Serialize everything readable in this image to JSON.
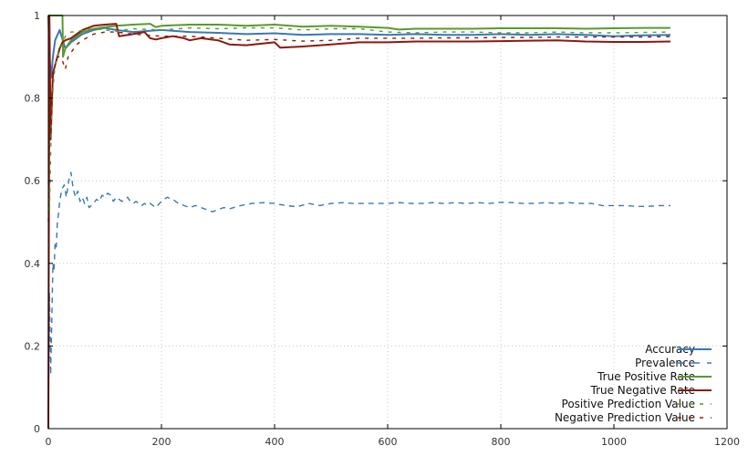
{
  "chart_data": {
    "type": "line",
    "title": "",
    "xlabel": "",
    "ylabel": "",
    "xlim": [
      0,
      1200
    ],
    "ylim": [
      0,
      1
    ],
    "grid": true,
    "legend_position": "bottom-right",
    "x_ticks": [
      0,
      200,
      400,
      600,
      800,
      1000,
      1200
    ],
    "y_ticks": [
      0,
      0.2,
      0.4,
      0.6,
      0.8,
      1
    ],
    "series": [
      {
        "name": "Accuracy",
        "color": "#3a78b5",
        "dash": "solid",
        "x": [
          0,
          2,
          5,
          8,
          12,
          20,
          30,
          40,
          50,
          60,
          80,
          100,
          120,
          150,
          200,
          250,
          300,
          350,
          400,
          450,
          500,
          550,
          600,
          650,
          700,
          750,
          800,
          850,
          900,
          950,
          1000,
          1050,
          1100
        ],
        "y": [
          1.0,
          0.9,
          0.85,
          0.9,
          0.94,
          0.965,
          0.92,
          0.935,
          0.945,
          0.955,
          0.965,
          0.97,
          0.965,
          0.96,
          0.965,
          0.96,
          0.958,
          0.955,
          0.957,
          0.953,
          0.955,
          0.955,
          0.953,
          0.955,
          0.953,
          0.953,
          0.955,
          0.953,
          0.955,
          0.953,
          0.95,
          0.952,
          0.953
        ]
      },
      {
        "name": "Prevalence",
        "color": "#3a78b5",
        "dash": "dashed",
        "x": [
          0,
          2,
          4,
          6,
          8,
          10,
          12,
          14,
          16,
          18,
          20,
          24,
          28,
          32,
          36,
          40,
          44,
          48,
          52,
          56,
          60,
          64,
          68,
          72,
          76,
          80,
          85,
          90,
          95,
          100,
          105,
          110,
          115,
          120,
          125,
          130,
          135,
          140,
          145,
          150,
          155,
          160,
          165,
          170,
          175,
          180,
          190,
          200,
          210,
          220,
          230,
          240,
          250,
          260,
          270,
          280,
          290,
          300,
          310,
          320,
          340,
          360,
          380,
          400,
          420,
          440,
          460,
          480,
          500,
          520,
          540,
          560,
          580,
          600,
          620,
          640,
          660,
          680,
          700,
          720,
          740,
          760,
          780,
          800,
          820,
          840,
          860,
          880,
          900,
          920,
          940,
          960,
          980,
          1000,
          1020,
          1040,
          1060,
          1080,
          1100
        ],
        "y": [
          0.0,
          0.33,
          0.13,
          0.25,
          0.4,
          0.38,
          0.45,
          0.44,
          0.5,
          0.52,
          0.55,
          0.58,
          0.59,
          0.56,
          0.6,
          0.62,
          0.58,
          0.56,
          0.575,
          0.55,
          0.56,
          0.545,
          0.56,
          0.535,
          0.54,
          0.545,
          0.555,
          0.55,
          0.565,
          0.56,
          0.57,
          0.565,
          0.55,
          0.56,
          0.555,
          0.55,
          0.555,
          0.56,
          0.55,
          0.545,
          0.55,
          0.545,
          0.54,
          0.545,
          0.54,
          0.545,
          0.535,
          0.55,
          0.56,
          0.555,
          0.545,
          0.54,
          0.535,
          0.54,
          0.535,
          0.53,
          0.525,
          0.53,
          0.535,
          0.532,
          0.54,
          0.545,
          0.547,
          0.545,
          0.54,
          0.537,
          0.545,
          0.54,
          0.545,
          0.547,
          0.545,
          0.545,
          0.545,
          0.545,
          0.547,
          0.545,
          0.545,
          0.547,
          0.545,
          0.547,
          0.545,
          0.547,
          0.545,
          0.548,
          0.547,
          0.545,
          0.545,
          0.547,
          0.545,
          0.547,
          0.545,
          0.545,
          0.54,
          0.54,
          0.54,
          0.538,
          0.538,
          0.54,
          0.54
        ]
      },
      {
        "name": "True Positive Rate",
        "color": "#5a9a2f",
        "dash": "solid",
        "x": [
          0,
          1,
          2,
          25,
          26,
          30,
          40,
          50,
          60,
          80,
          100,
          120,
          150,
          180,
          190,
          200,
          250,
          300,
          350,
          400,
          450,
          500,
          550,
          600,
          620,
          650,
          700,
          750,
          800,
          850,
          900,
          950,
          1000,
          1050,
          1100
        ],
        "y": [
          1.0,
          1.0,
          1.0,
          1.0,
          0.9,
          0.92,
          0.94,
          0.95,
          0.96,
          0.968,
          0.972,
          0.975,
          0.978,
          0.98,
          0.972,
          0.975,
          0.978,
          0.978,
          0.975,
          0.978,
          0.973,
          0.975,
          0.973,
          0.97,
          0.966,
          0.968,
          0.968,
          0.968,
          0.969,
          0.969,
          0.969,
          0.968,
          0.969,
          0.97,
          0.97
        ]
      },
      {
        "name": "True Negative Rate",
        "color": "#8b1a0e",
        "dash": "solid",
        "x": [
          0,
          2,
          4,
          8,
          12,
          16,
          20,
          25,
          30,
          40,
          50,
          60,
          80,
          100,
          120,
          125,
          150,
          170,
          180,
          190,
          200,
          220,
          240,
          250,
          270,
          300,
          320,
          350,
          400,
          410,
          450,
          500,
          550,
          600,
          650,
          700,
          750,
          800,
          850,
          900,
          950,
          1000,
          1050,
          1100
        ],
        "y": [
          0.0,
          1.0,
          0.7,
          0.86,
          0.88,
          0.9,
          0.92,
          0.935,
          0.94,
          0.945,
          0.955,
          0.965,
          0.975,
          0.978,
          0.98,
          0.95,
          0.955,
          0.96,
          0.945,
          0.942,
          0.945,
          0.95,
          0.945,
          0.94,
          0.945,
          0.94,
          0.93,
          0.928,
          0.935,
          0.922,
          0.925,
          0.93,
          0.935,
          0.935,
          0.937,
          0.937,
          0.937,
          0.938,
          0.939,
          0.94,
          0.937,
          0.936,
          0.936,
          0.937
        ]
      },
      {
        "name": "Positive Prediction Value",
        "color": "#5a9a2f",
        "dash": "dashed",
        "x": [
          0,
          2,
          5,
          8,
          12,
          16,
          20,
          25,
          30,
          35,
          40,
          50,
          60,
          80,
          100,
          120,
          150,
          200,
          250,
          300,
          350,
          400,
          450,
          500,
          550,
          600,
          650,
          700,
          750,
          800,
          850,
          900,
          950,
          1000,
          1050,
          1100
        ],
        "y": [
          0.6,
          0.52,
          0.72,
          0.82,
          0.88,
          0.9,
          0.92,
          0.93,
          0.95,
          0.955,
          0.96,
          0.96,
          0.965,
          0.968,
          0.965,
          0.962,
          0.968,
          0.965,
          0.97,
          0.968,
          0.97,
          0.97,
          0.965,
          0.968,
          0.968,
          0.96,
          0.958,
          0.96,
          0.96,
          0.958,
          0.958,
          0.96,
          0.958,
          0.958,
          0.959,
          0.96
        ]
      },
      {
        "name": "Negative Prediction Value",
        "color": "#8b1a0e",
        "dash": "dashed",
        "x": [
          0,
          2,
          5,
          8,
          12,
          16,
          20,
          25,
          30,
          35,
          40,
          50,
          60,
          80,
          100,
          120,
          150,
          200,
          250,
          300,
          350,
          400,
          450,
          500,
          550,
          600,
          650,
          700,
          750,
          800,
          850,
          900,
          950,
          1000,
          1050,
          1100
        ],
        "y": [
          0.5,
          0.7,
          0.78,
          0.85,
          0.88,
          0.9,
          0.9,
          0.89,
          0.87,
          0.9,
          0.91,
          0.93,
          0.94,
          0.955,
          0.96,
          0.96,
          0.955,
          0.95,
          0.95,
          0.945,
          0.94,
          0.942,
          0.938,
          0.94,
          0.945,
          0.945,
          0.945,
          0.946,
          0.946,
          0.947,
          0.947,
          0.948,
          0.948,
          0.948,
          0.948,
          0.949
        ]
      }
    ]
  }
}
